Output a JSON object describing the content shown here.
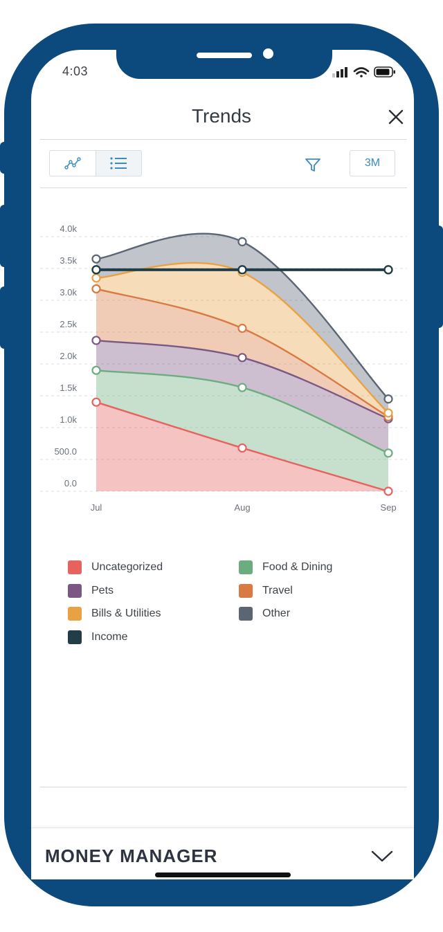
{
  "status_bar": {
    "time": "4:03"
  },
  "header": {
    "title": "Trends"
  },
  "toolbar": {
    "range_label": "3M"
  },
  "colors": {
    "phone_frame": "#0c4a7e",
    "accent": "#3b8bc2"
  },
  "icons": {
    "close": "close-icon",
    "line_chart": "line-chart-icon",
    "list": "list-icon",
    "filter": "filter-icon",
    "chevron": "chevron-down-icon"
  },
  "chart_data": {
    "type": "area",
    "stacked": true,
    "x": [
      "Jul",
      "Aug",
      "Sep"
    ],
    "y_ticks": [
      "0.0",
      "500.0",
      "1.0k",
      "1.5k",
      "2.0k",
      "2.5k",
      "3.0k",
      "3.5k",
      "4.0k"
    ],
    "ylim": [
      0,
      4000
    ],
    "grid": true,
    "legend_position": "bottom",
    "series": [
      {
        "name": "Uncategorized",
        "color": "#e5625f",
        "values": [
          1400,
          680,
          0
        ]
      },
      {
        "name": "Food & Dining",
        "color": "#6cad7f",
        "values": [
          1900,
          1630,
          600
        ]
      },
      {
        "name": "Pets",
        "color": "#7b5883",
        "values": [
          2370,
          2100,
          1140
        ]
      },
      {
        "name": "Travel",
        "color": "#d87a41",
        "values": [
          3180,
          2560,
          1170
        ]
      },
      {
        "name": "Bills & Utilities",
        "color": "#e8a244",
        "values": [
          3350,
          3440,
          1230
        ]
      },
      {
        "name": "Other",
        "color": "#5b6573",
        "values": [
          3650,
          3920,
          1450
        ]
      }
    ],
    "line_series": [
      {
        "name": "Income",
        "color": "#213d48",
        "values": [
          3480,
          3480,
          3480
        ]
      }
    ]
  },
  "legend": [
    {
      "label": "Uncategorized",
      "color": "#e5625f"
    },
    {
      "label": "Food & Dining",
      "color": "#6cad7f"
    },
    {
      "label": "Pets",
      "color": "#7b5883"
    },
    {
      "label": "Travel",
      "color": "#d87a41"
    },
    {
      "label": "Bills & Utilities",
      "color": "#e8a244"
    },
    {
      "label": "Other",
      "color": "#5b6573"
    },
    {
      "label": "Income",
      "color": "#213d48"
    }
  ],
  "footer": {
    "title": "MONEY MANAGER"
  }
}
